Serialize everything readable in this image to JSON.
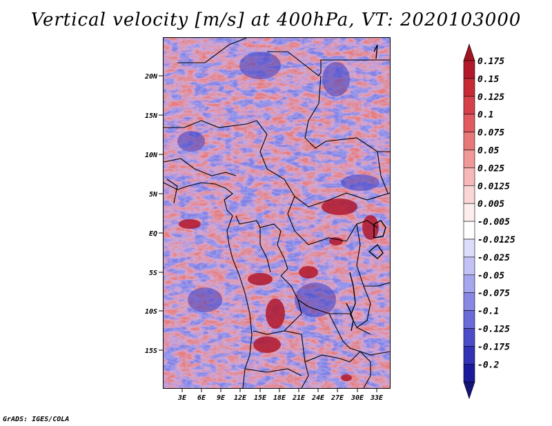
{
  "title": "Vertical velocity [m/s] at 400hPa, VT: 2020103000",
  "credit": "GrADS: IGES/COLA",
  "map": {
    "lat_ticks": [
      "20N",
      "15N",
      "10N",
      "5N",
      "EQ",
      "5S",
      "10S",
      "15S"
    ],
    "lon_ticks": [
      "3E",
      "6E",
      "9E",
      "12E",
      "15E",
      "18E",
      "21E",
      "24E",
      "27E",
      "30E",
      "33E"
    ]
  },
  "colorbar": {
    "labels": [
      "0.175",
      "0.15",
      "0.125",
      "0.1",
      "0.075",
      "0.05",
      "0.025",
      "0.0125",
      "0.005",
      "-0.005",
      "-0.0125",
      "-0.025",
      "-0.05",
      "-0.075",
      "-0.1",
      "-0.125",
      "-0.175",
      "-0.2"
    ],
    "colors": [
      "#b2182b",
      "#c62b35",
      "#d6404a",
      "#e05a5f",
      "#e87878",
      "#f09898",
      "#f6b8b8",
      "#fad6d6",
      "#fdeeee",
      "#ffffff",
      "#dcdcfc",
      "#c2c2f6",
      "#a6a6ee",
      "#8888e4",
      "#6a6ad8",
      "#4c4cc8",
      "#3232b4",
      "#1a1a9a"
    ],
    "top_arrow_color": "#a01420",
    "bottom_arrow_color": "#141478"
  }
}
